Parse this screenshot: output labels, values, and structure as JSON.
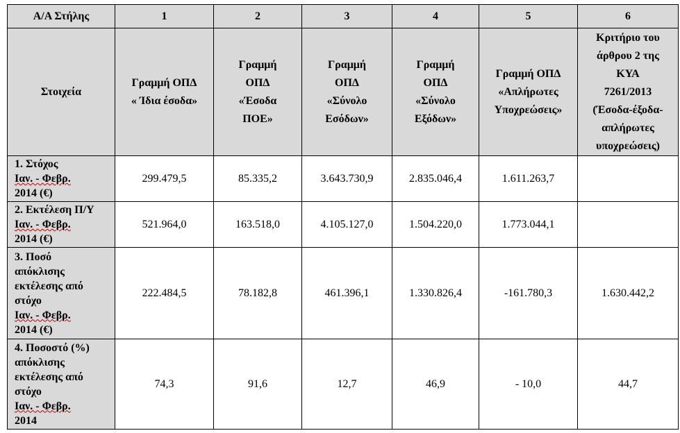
{
  "header": {
    "aa_label": "Α/Α Στήλης",
    "col_numbers": [
      "1",
      "2",
      "3",
      "4",
      "5",
      "6"
    ],
    "row_label": "Στοιχεία",
    "col_titles": [
      [
        "Γραμμή ΟΠΔ",
        "« Ίδια έσοδα»"
      ],
      [
        "Γραμμή",
        "ΟΠΔ",
        "«Έσοδα",
        "ΠΟΕ»"
      ],
      [
        "Γραμμή",
        "ΟΠΔ",
        "«Σύνολο",
        "Εσόδων»"
      ],
      [
        "Γραμμή",
        "ΟΠΔ",
        "«Σύνολο",
        "Εξόδων»"
      ],
      [
        "Γραμμή ΟΠΔ",
        "«Απλήρωτες",
        "Υποχρεώσεις»"
      ],
      [
        "Κριτήριο του",
        "άρθρου 2 της",
        "ΚΥΑ",
        "7261/2013",
        "(Έσοδα-έξοδα-",
        "απλήρωτες",
        "υποχρεώσεις)"
      ]
    ]
  },
  "rows": [
    {
      "label": [
        "1. Στόχος",
        "Ιαν. - Φεβρ.",
        "2014 (€)"
      ],
      "values": [
        "299.479,5",
        "85.335,2",
        "3.643.730,9",
        "2.835.046,4",
        "1.611.263,7",
        ""
      ]
    },
    {
      "label": [
        "2. Εκτέλεση Π/Υ",
        "Ιαν. - Φεβρ.",
        "2014 (€)"
      ],
      "values": [
        "521.964,0",
        "163.518,0",
        "4.105.127,0",
        "1.504.220,0",
        "1.773.044,1",
        ""
      ]
    },
    {
      "label": [
        "3. Ποσό",
        "απόκλισης",
        "εκτέλεσης από",
        "στόχο",
        "Ιαν. - Φεβρ.",
        "2014 (€)"
      ],
      "values": [
        "222.484,5",
        "78.182,8",
        "461.396,1",
        "1.330.826,4",
        "-161.780,3",
        "1.630.442,2"
      ]
    },
    {
      "label": [
        "4. Ποσοστό (%)",
        "απόκλισης",
        "εκτέλεσης από",
        "στόχο",
        "Ιαν. - Φεβρ.",
        "2014"
      ],
      "values": [
        "74,3",
        "91,6",
        "12,7",
        "46,9",
        "-  10,0",
        "44,7"
      ]
    }
  ]
}
